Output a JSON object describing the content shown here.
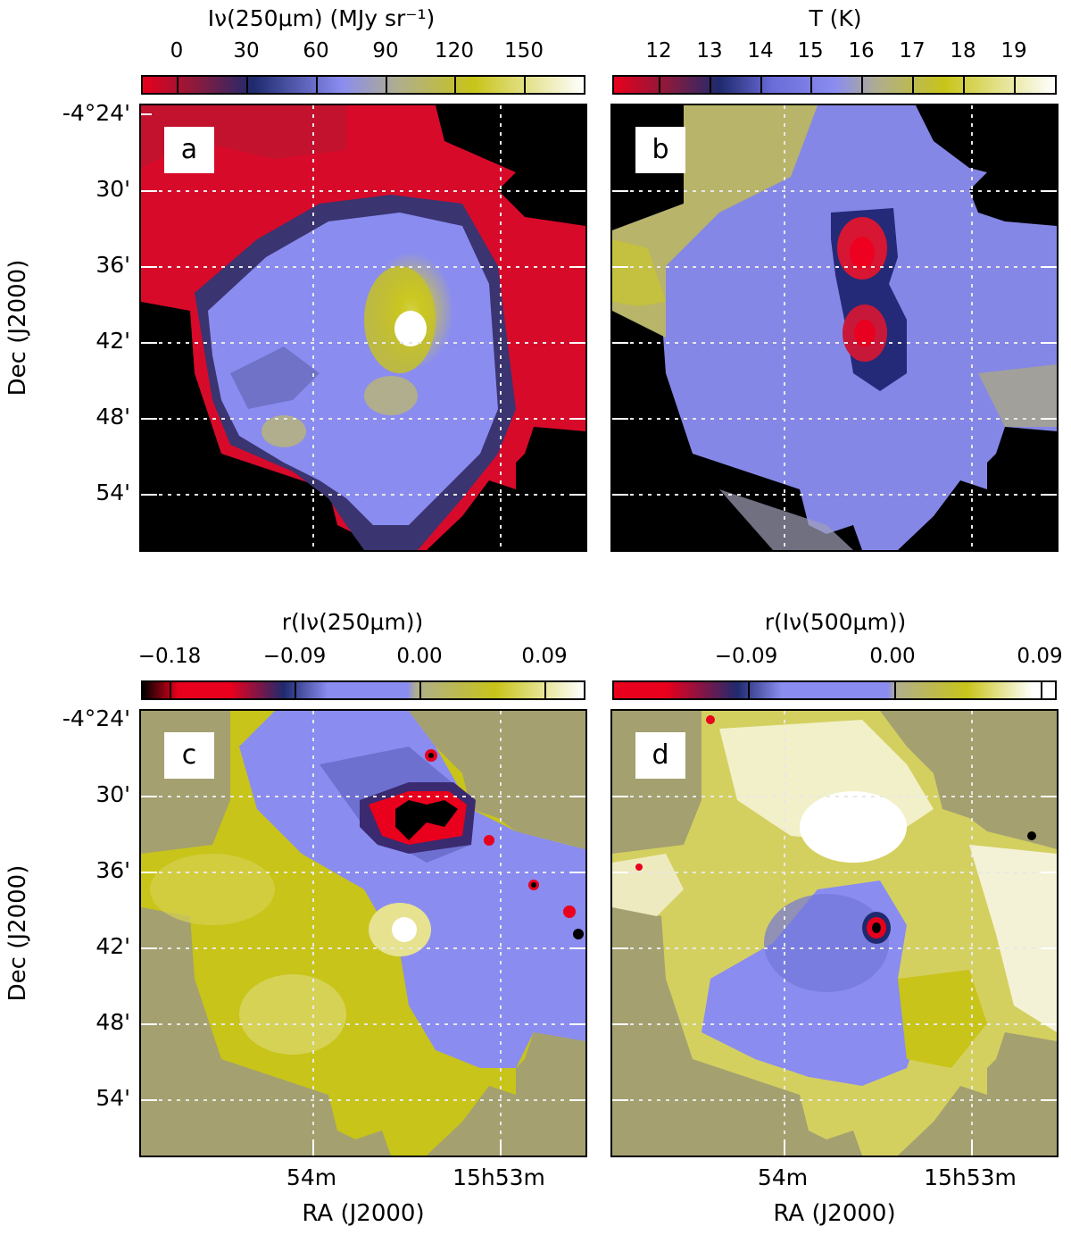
{
  "figure": {
    "panels": [
      {
        "id": "a",
        "letter": "a",
        "colorbar": {
          "title": "Iν(250μm) (MJy sr⁻¹)",
          "ticks": [
            "0",
            "30",
            "60",
            "90",
            "120",
            "150"
          ],
          "colors": [
            "#e8001c",
            "#8b1a3c",
            "#1f2a6e",
            "#8a8cf0",
            "#b0ae8c",
            "#c8c419",
            "#ffffff"
          ]
        },
        "background": "#000000"
      },
      {
        "id": "b",
        "letter": "b",
        "colorbar": {
          "title": "T (K)",
          "ticks": [
            "12",
            "13",
            "14",
            "15",
            "16",
            "17",
            "18",
            "19"
          ],
          "colors": [
            "#e8001c",
            "#8b1a3c",
            "#1f2a6e",
            "#6a6cd8",
            "#8a8cf0",
            "#b0ae8c",
            "#c8c419",
            "#ffffff"
          ]
        },
        "background": "#000000"
      },
      {
        "id": "c",
        "letter": "c",
        "colorbar": {
          "title": "r(Iν(250μm))",
          "ticks": [
            "−0.18",
            "−0.09",
            "0.00",
            "0.09"
          ],
          "colors": [
            "#000000",
            "#e8001c",
            "#1f2a6e",
            "#8a8cf0",
            "#b0ae8c",
            "#c8c419",
            "#ffffff"
          ]
        },
        "background": "#a4a070"
      },
      {
        "id": "d",
        "letter": "d",
        "colorbar": {
          "title": "r(Iν(500μm))",
          "ticks": [
            "−0.09",
            "0.00",
            "0.09"
          ],
          "colors": [
            "#e8001c",
            "#1f2a6e",
            "#8a8cf0",
            "#b0ae8c",
            "#c8c419",
            "#ffffff",
            "#000000"
          ]
        },
        "background": "#a4a070"
      }
    ],
    "dec_ticks": [
      "-4°24'",
      "30'",
      "36'",
      "42'",
      "48'",
      "54'"
    ],
    "ra_ticks": [
      "54m",
      "15h53m"
    ],
    "y_axis_title": "Dec (J2000)",
    "x_axis_title": "RA (J2000)"
  }
}
